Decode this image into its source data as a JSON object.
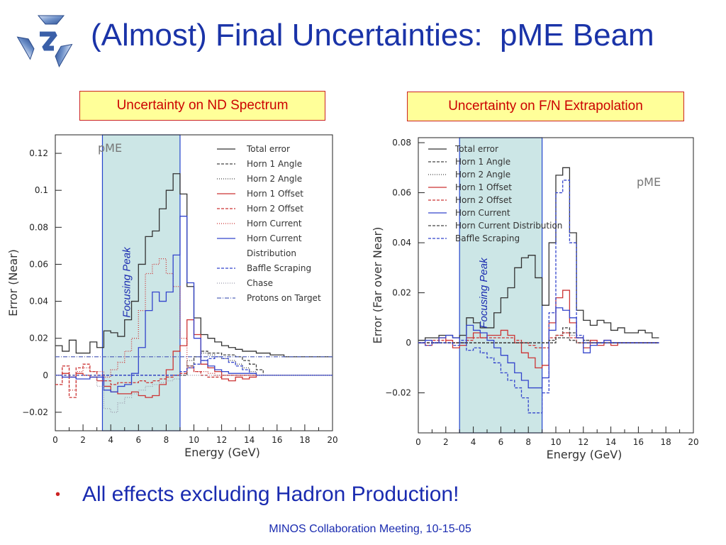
{
  "slide": {
    "title": "(Almost) Final Uncertainties:  pME Beam",
    "bullet": "All effects excluding Hadron Production!",
    "footer": "MINOS Collaboration Meeting, 10-15-05"
  },
  "colors": {
    "title": "#1a33a8",
    "panel_fill": "#ffff99",
    "panel_border": "#cc2222",
    "panel_text": "#cc0000",
    "band_fill": "#cce6e6",
    "band_border": "#2244cc",
    "peak_label": "#1a2bb0"
  },
  "chart_data": [
    {
      "id": "nd",
      "panel_title": "Uncertainty on ND Spectrum",
      "type": "line",
      "step": true,
      "xlabel": "Energy (GeV)",
      "ylabel": "Error (Near)",
      "xlim": [
        0,
        20
      ],
      "ylim": [
        -0.03,
        0.13
      ],
      "x_ticks": [
        0,
        2,
        4,
        6,
        8,
        10,
        12,
        14,
        16,
        18,
        20
      ],
      "y_ticks": [
        -0.02,
        0,
        0.02,
        0.04,
        0.06,
        0.08,
        0.1,
        0.12
      ],
      "y_tick_labels": [
        "−0.02",
        "0",
        "0.02",
        "0.04",
        "0.06",
        "0.08",
        "0.1",
        "0.12"
      ],
      "beam_label": "pME",
      "focusing_peak": {
        "label": "Focusing Peak",
        "xmin": 3.4,
        "xmax": 9.0
      },
      "legend_position": "top-right",
      "bin_edges": [
        0,
        0.5,
        1,
        1.5,
        2,
        2.5,
        3,
        3.5,
        4,
        4.5,
        5,
        5.5,
        6,
        6.5,
        7,
        7.5,
        8,
        8.5,
        9,
        9.5,
        10,
        10.5,
        11,
        11.5,
        12,
        12.5,
        13,
        13.5,
        14,
        14.5,
        15,
        15.5,
        16,
        16.5,
        17,
        17.5,
        18,
        18.5,
        19,
        19.5,
        20
      ],
      "series": [
        {
          "name": "Total error",
          "color": "#333333",
          "dash": "",
          "values": [
            0.016,
            0.013,
            0.019,
            0.012,
            0.012,
            0.018,
            0.015,
            0.024,
            0.023,
            0.021,
            0.03,
            0.04,
            0.06,
            0.075,
            0.078,
            0.09,
            0.1,
            0.109,
            0.098,
            0.048,
            0.031,
            0.022,
            0.02,
            0.018,
            0.016,
            0.015,
            0.014,
            0.013,
            0.013,
            0.012,
            0.012,
            0.011,
            0.011,
            0.01,
            0.01,
            0.01,
            0.01,
            0.01,
            0.01,
            0.01
          ]
        },
        {
          "name": "Horn 1 Angle",
          "color": "#444444",
          "dash": "4,2",
          "values": [
            0.0,
            0.0,
            0.0,
            0.0,
            0.0,
            0.0,
            0.0,
            0.0,
            0.0,
            0.0,
            0.0,
            0.0,
            0.0,
            0.0,
            0.0,
            0.0,
            0.0,
            0.0,
            0.0,
            0.005,
            0.01,
            0.013,
            0.012,
            0.012,
            0.011,
            0.011,
            0.01,
            0.008,
            0.006,
            0.003,
            0.0,
            0.0,
            0.0,
            0.0,
            0.0,
            0.0,
            0.0,
            0.0,
            0.0,
            0.0
          ]
        },
        {
          "name": "Horn 2 Angle",
          "color": "#444444",
          "dash": "1,2",
          "values": [
            0.0,
            0.0,
            0.0,
            0.0,
            0.0,
            0.0,
            0.0,
            0.0,
            0.0,
            0.0,
            0.0,
            0.0,
            0.0,
            0.0,
            0.0,
            0.0,
            0.0,
            0.0,
            0.0,
            0.008,
            0.01,
            0.012,
            0.011,
            0.01,
            0.009,
            0.008,
            0.006,
            0.004,
            0.002,
            0.0,
            0.0,
            0.0,
            0.0,
            0.0,
            0.0,
            0.0,
            0.0,
            0.0,
            0.0,
            0.0
          ]
        },
        {
          "name": "Horn 1 Offset",
          "color": "#cc3333",
          "dash": "",
          "values": [
            0.0,
            0.001,
            -0.001,
            0.001,
            0.0,
            -0.001,
            -0.003,
            -0.006,
            -0.009,
            -0.01,
            -0.01,
            -0.009,
            -0.011,
            -0.012,
            -0.011,
            -0.005,
            0.003,
            0.013,
            0.016,
            0.03,
            0.022,
            0.006,
            0.004,
            0.002,
            -0.002,
            -0.003,
            -0.001,
            -0.002,
            -0.001,
            0.0,
            0.0,
            0.0,
            0.0,
            0.0,
            0.0,
            0.0,
            0.0,
            0.0,
            0.0,
            0.0
          ]
        },
        {
          "name": "Horn 2 Offset",
          "color": "#cc3333",
          "dash": "4,2",
          "values": [
            -0.005,
            0.005,
            -0.012,
            0.004,
            0.006,
            0.002,
            0.0,
            -0.003,
            -0.005,
            -0.004,
            -0.004,
            -0.004,
            -0.003,
            -0.004,
            -0.003,
            -0.002,
            -0.001,
            0.0,
            0.001,
            0.004,
            0.002,
            0.0,
            -0.001,
            -0.001,
            0.0,
            0.0,
            0.0,
            0.0,
            0.0,
            0.0,
            0.0,
            0.0,
            0.0,
            0.0,
            0.0,
            0.0,
            0.0,
            0.0,
            0.0,
            0.0
          ]
        },
        {
          "name": "Horn Current",
          "color": "#cc3333",
          "dash": "1,2",
          "values": [
            -0.005,
            0.005,
            -0.008,
            0.002,
            0.004,
            0.002,
            0.002,
            -0.001,
            0.003,
            0.007,
            0.013,
            0.02,
            0.035,
            0.055,
            0.06,
            0.063,
            0.055,
            0.048,
            0.02,
            0.005,
            0.002,
            0.002,
            0.001,
            0.0,
            0.0,
            0.0,
            0.0,
            0.0,
            0.0,
            0.0,
            0.0,
            0.0,
            0.0,
            0.0,
            0.0,
            0.0,
            0.0,
            0.0,
            0.0,
            0.0
          ]
        },
        {
          "name": "Horn Current Distribution",
          "color": "#3344cc",
          "dash": "",
          "values": [
            0.0,
            -0.001,
            -0.001,
            -0.002,
            -0.002,
            -0.001,
            -0.001,
            -0.008,
            -0.009,
            -0.006,
            -0.005,
            0.001,
            0.015,
            0.035,
            0.045,
            0.04,
            0.045,
            0.065,
            0.086,
            0.05,
            0.02,
            0.008,
            0.005,
            0.003,
            0.002,
            0.001,
            0.001,
            0.001,
            0.001,
            0.0,
            0.0,
            0.0,
            0.0,
            0.0,
            0.0,
            0.0,
            0.0,
            0.0,
            0.0,
            0.0
          ]
        },
        {
          "name": "Baffle Scraping",
          "color": "#3344cc",
          "dash": "4,2",
          "values": [
            0.0,
            0.0,
            0.0,
            0.0,
            0.0,
            0.0,
            0.0,
            0.0,
            0.0,
            0.0,
            0.0,
            0.0,
            0.0,
            0.0,
            0.0,
            0.0,
            0.0,
            0.0,
            0.002,
            0.004,
            0.006,
            0.008,
            0.009,
            0.01,
            0.009,
            0.007,
            0.005,
            0.003,
            0.001,
            0.0,
            0.0,
            0.0,
            0.0,
            0.0,
            0.0,
            0.0,
            0.0,
            0.0,
            0.0,
            0.0
          ]
        },
        {
          "name": "Chase",
          "color": "#9999aa",
          "dash": "1,2",
          "values": [
            0.0,
            0.0,
            0.0,
            0.0,
            0.0,
            0.0,
            -0.006,
            -0.018,
            -0.02,
            -0.015,
            -0.012,
            -0.01,
            -0.008,
            -0.006,
            -0.005,
            -0.004,
            -0.003,
            -0.002,
            0.0,
            0.0,
            0.0,
            0.0,
            0.0,
            0.0,
            0.0,
            0.0,
            0.0,
            0.0,
            0.0,
            0.0,
            0.0,
            0.0,
            0.0,
            0.0,
            0.0,
            0.0,
            0.0,
            0.0,
            0.0,
            0.0
          ]
        },
        {
          "name": "Protons on Target",
          "color": "#5566bb",
          "dash": "6,2,1,2",
          "values": [
            0.01,
            0.01,
            0.01,
            0.01,
            0.01,
            0.01,
            0.01,
            0.01,
            0.01,
            0.01,
            0.01,
            0.01,
            0.01,
            0.01,
            0.01,
            0.01,
            0.01,
            0.01,
            0.01,
            0.01,
            0.01,
            0.01,
            0.01,
            0.01,
            0.01,
            0.01,
            0.01,
            0.01,
            0.01,
            0.01,
            0.01,
            0.01,
            0.01,
            0.01,
            0.01,
            0.01,
            0.01,
            0.01,
            0.01,
            0.01
          ]
        }
      ]
    },
    {
      "id": "fn",
      "panel_title": "Uncertainty on F/N Extrapolation",
      "type": "line",
      "step": true,
      "xlabel": "Energy (GeV)",
      "ylabel": "Error (Far over Near)",
      "xlim": [
        0,
        20
      ],
      "ylim": [
        -0.036,
        0.082
      ],
      "x_ticks": [
        0,
        2,
        4,
        6,
        8,
        10,
        12,
        14,
        16,
        18,
        20
      ],
      "y_ticks": [
        -0.02,
        0,
        0.02,
        0.04,
        0.06,
        0.08
      ],
      "y_tick_labels": [
        "−0.02",
        "0",
        "0.02",
        "0.04",
        "0.06",
        "0.08"
      ],
      "beam_label": "pME",
      "focusing_peak": {
        "label": "Focusing Peak",
        "xmin": 3.0,
        "xmax": 9.0
      },
      "legend_position": "top-left",
      "bin_edges": [
        0,
        0.5,
        1,
        1.5,
        2,
        2.5,
        3,
        3.5,
        4,
        4.5,
        5,
        5.5,
        6,
        6.5,
        7,
        7.5,
        8,
        8.5,
        9,
        9.5,
        10,
        10.5,
        11,
        11.5,
        12,
        12.5,
        13,
        13.5,
        14,
        14.5,
        15,
        15.5,
        16,
        16.5,
        17,
        17.5
      ],
      "series": [
        {
          "name": "Total error",
          "color": "#333333",
          "dash": "",
          "values": [
            0.001,
            0.002,
            0.002,
            0.003,
            0.003,
            0.002,
            0.003,
            0.01,
            0.008,
            0.006,
            0.006,
            0.012,
            0.018,
            0.022,
            0.03,
            0.034,
            0.035,
            0.026,
            0.015,
            0.04,
            0.067,
            0.07,
            0.044,
            0.013,
            0.009,
            0.007,
            0.009,
            0.008,
            0.005,
            0.006,
            0.004,
            0.004,
            0.005,
            0.004,
            0.002
          ]
        },
        {
          "name": "Horn 1 Angle",
          "color": "#444444",
          "dash": "4,2",
          "values": [
            0.0,
            0.0,
            0.0,
            0.0,
            0.0,
            0.0,
            0.0,
            0.0,
            0.0,
            0.0,
            0.0,
            0.0,
            0.0,
            0.0,
            0.0,
            0.0,
            0.0,
            0.0,
            0.0,
            0.0,
            0.003,
            0.006,
            0.004,
            0.002,
            0.001,
            0.0,
            0.0,
            0.0,
            0.0,
            0.0,
            0.0,
            0.0,
            0.0,
            0.0,
            0.0
          ]
        },
        {
          "name": "Horn 2 Angle",
          "color": "#444444",
          "dash": "1,2",
          "values": [
            0.0,
            0.0,
            0.0,
            0.0,
            0.0,
            0.0,
            0.0,
            0.0,
            0.0,
            0.0,
            0.0,
            0.0,
            0.0,
            0.0,
            0.0,
            0.0,
            0.0,
            0.0,
            0.0,
            0.0,
            0.002,
            0.004,
            0.003,
            0.002,
            0.001,
            0.0,
            0.0,
            0.0,
            0.0,
            0.0,
            0.0,
            0.0,
            0.0,
            0.0,
            0.0
          ]
        },
        {
          "name": "Horn 1 Offset",
          "color": "#cc3333",
          "dash": "",
          "values": [
            0.0,
            -0.001,
            0.0,
            0.002,
            0.001,
            -0.002,
            -0.001,
            0.002,
            0.004,
            0.002,
            0.003,
            0.003,
            0.005,
            0.003,
            0.0,
            -0.004,
            -0.006,
            -0.01,
            -0.009,
            0.008,
            0.018,
            0.021,
            0.008,
            0.002,
            -0.002,
            0.001,
            -0.001,
            0.001,
            -0.001,
            0.0,
            0.0,
            0.0,
            0.0,
            0.0,
            0.0
          ]
        },
        {
          "name": "Horn 2 Offset",
          "color": "#cc3333",
          "dash": "4,2",
          "values": [
            0.0,
            0.0,
            0.001,
            0.001,
            0.0,
            0.0,
            0.0,
            0.001,
            0.002,
            0.002,
            0.002,
            0.002,
            0.002,
            0.002,
            0.001,
            0.0,
            -0.001,
            -0.002,
            -0.002,
            0.002,
            0.003,
            0.004,
            0.002,
            0.0,
            0.0,
            0.0,
            0.0,
            0.0,
            0.0,
            0.0,
            0.0,
            0.0,
            0.0,
            0.0,
            0.0
          ]
        },
        {
          "name": "Horn Current",
          "color": "#3344cc",
          "dash": "",
          "values": [
            0.0,
            0.001,
            0.0,
            0.002,
            0.003,
            0.002,
            0.0,
            0.007,
            0.005,
            0.004,
            0.001,
            -0.002,
            -0.005,
            -0.008,
            -0.012,
            -0.015,
            -0.018,
            -0.018,
            -0.014,
            0.005,
            0.014,
            0.013,
            0.01,
            0.002,
            -0.004,
            -0.001,
            0.0,
            0.001,
            0.0,
            0.0,
            0.0,
            0.0,
            0.0,
            0.0,
            0.0
          ]
        },
        {
          "name": "Horn Current Distribution",
          "color": "#444444",
          "dash": "4,2",
          "values": [
            0.0,
            0.0,
            0.0,
            0.0,
            0.0,
            0.0,
            0.0,
            0.0,
            0.0,
            0.0,
            0.0,
            0.0,
            0.0,
            0.0,
            0.0,
            0.0,
            0.0,
            0.0,
            0.0,
            0.001,
            0.002,
            0.002,
            0.001,
            0.0,
            0.0,
            0.0,
            0.0,
            0.0,
            0.0,
            0.0,
            0.0,
            0.0,
            0.0,
            0.0,
            0.0
          ]
        },
        {
          "name": "Baffle Scraping",
          "color": "#3344cc",
          "dash": "4,2",
          "values": [
            0.0,
            -0.001,
            0.0,
            0.0,
            0.0,
            -0.001,
            0.001,
            -0.003,
            -0.002,
            -0.004,
            -0.006,
            -0.008,
            -0.012,
            -0.015,
            -0.018,
            -0.022,
            -0.028,
            -0.028,
            -0.02,
            0.012,
            0.06,
            0.065,
            0.04,
            0.003,
            0.0,
            0.0,
            0.0,
            0.0,
            0.0,
            0.0,
            0.0,
            0.0,
            0.0,
            0.0,
            0.0
          ]
        }
      ]
    }
  ]
}
